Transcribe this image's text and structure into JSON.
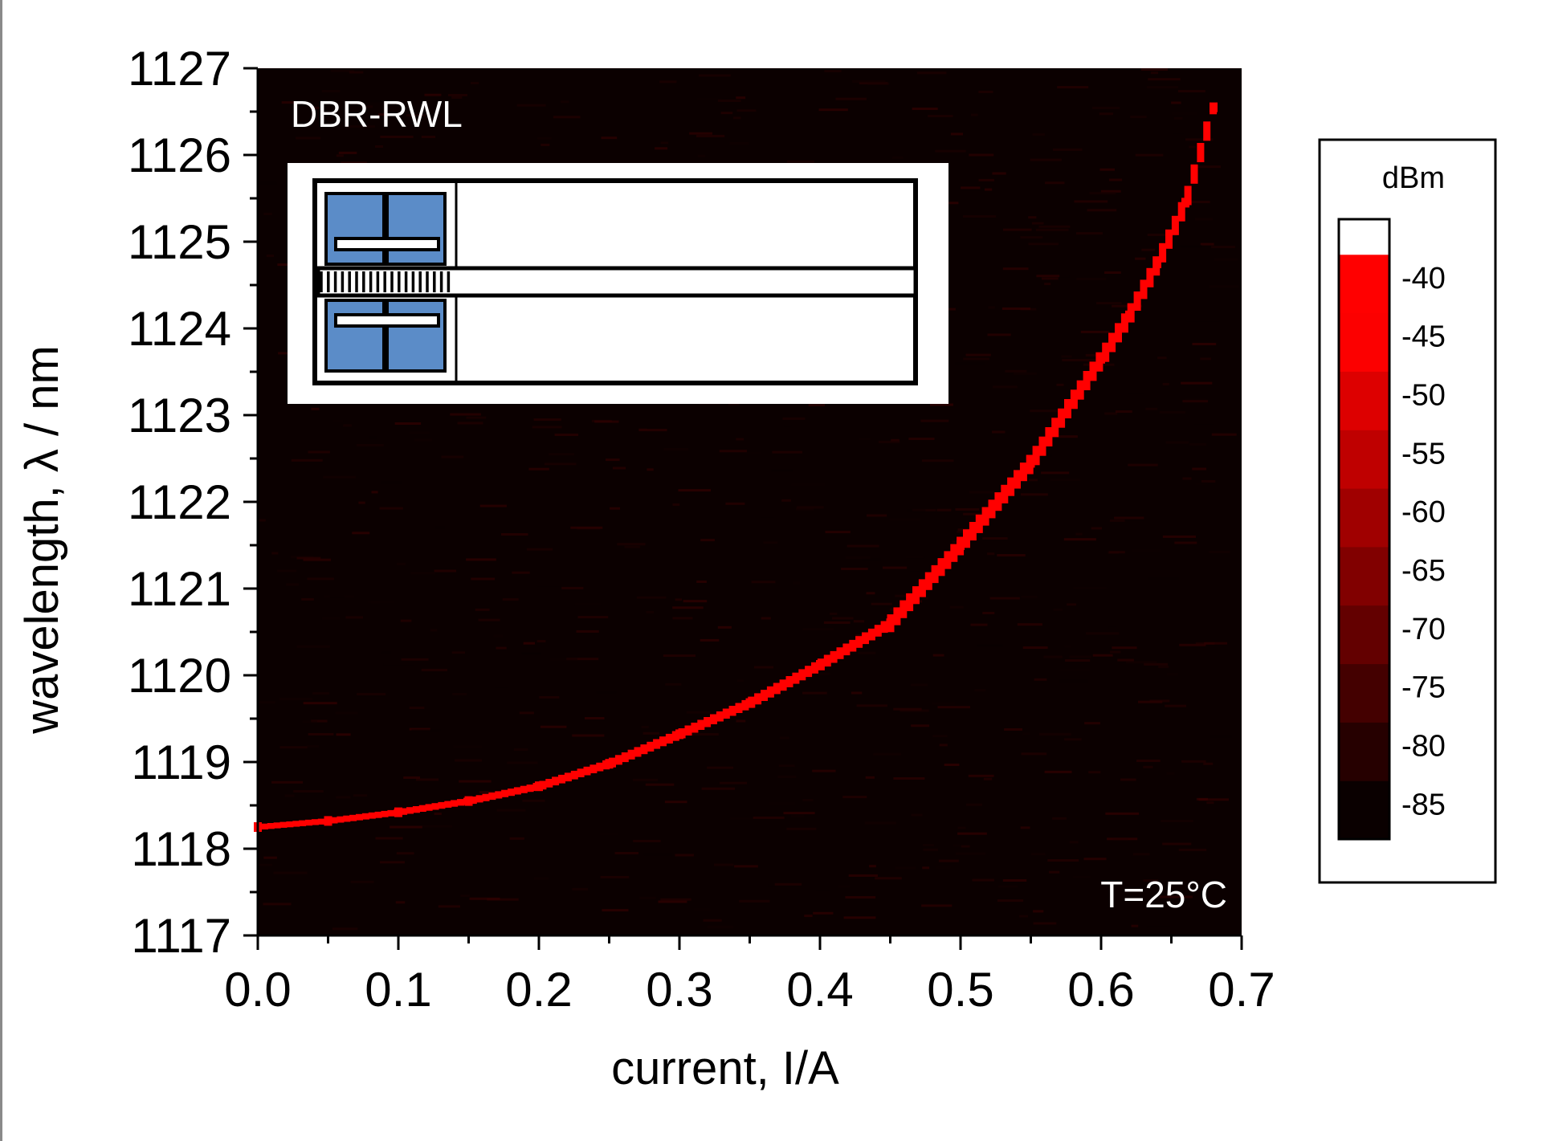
{
  "chart_data": {
    "type": "heatmap",
    "xlabel": "current, I/A",
    "ylabel": "wavelength, λ / nm",
    "xlim": [
      0.0,
      0.7
    ],
    "ylim": [
      1117,
      1127
    ],
    "x_ticks": [
      "0.0",
      "0.1",
      "0.2",
      "0.3",
      "0.4",
      "0.5",
      "0.6",
      "0.7"
    ],
    "y_ticks": [
      "1117",
      "1118",
      "1119",
      "1120",
      "1121",
      "1122",
      "1123",
      "1124",
      "1125",
      "1126",
      "1127"
    ],
    "x_tick_values": [
      0.0,
      0.1,
      0.2,
      0.3,
      0.4,
      0.5,
      0.6,
      0.7
    ],
    "y_tick_values": [
      1117,
      1118,
      1119,
      1120,
      1121,
      1122,
      1123,
      1124,
      1125,
      1126,
      1127
    ],
    "annotations": {
      "device": "DBR-RWL",
      "temperature": "T=25°C"
    },
    "colorbar": {
      "unit": "dBm",
      "range": [
        -88,
        -35
      ],
      "ticks": [
        "-40",
        "-45",
        "-50",
        "-55",
        "-60",
        "-65",
        "-70",
        "-75",
        "-80",
        "-85"
      ],
      "tick_values": [
        -40,
        -45,
        -50,
        -55,
        -60,
        -65,
        -70,
        -75,
        -80,
        -85
      ]
    },
    "background_level_dBm": -80,
    "peak_level_dBm": -45,
    "emission_peak": {
      "current_A": [
        0.0,
        0.05,
        0.1,
        0.15,
        0.2,
        0.25,
        0.3,
        0.35,
        0.4,
        0.45,
        0.5,
        0.55,
        0.6,
        0.62,
        0.64,
        0.66,
        0.68
      ],
      "wavelength_nm": [
        1118.25,
        1118.32,
        1118.42,
        1118.55,
        1118.72,
        1118.98,
        1119.32,
        1119.68,
        1120.12,
        1120.6,
        1121.5,
        1122.45,
        1123.65,
        1124.15,
        1124.75,
        1125.45,
        1126.55
      ]
    }
  }
}
